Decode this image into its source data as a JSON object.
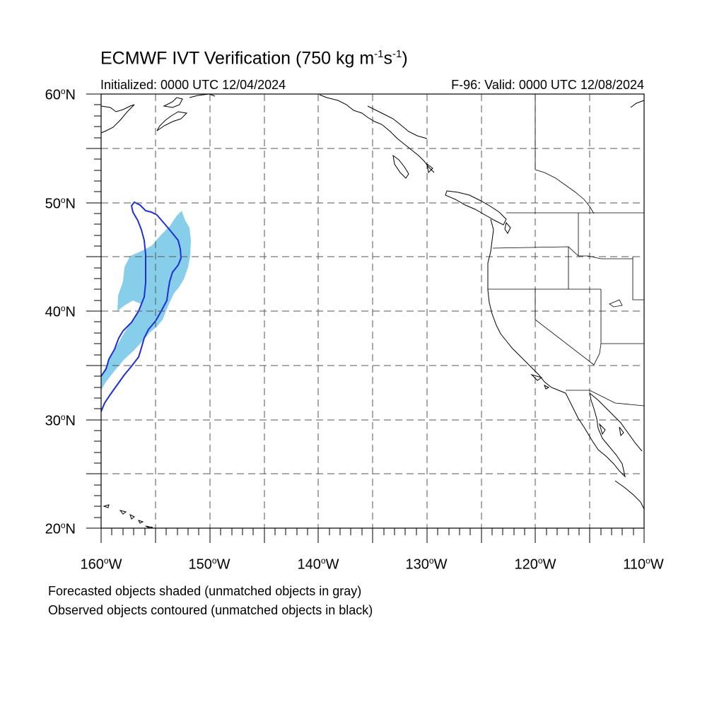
{
  "title": {
    "prefix": "ECMWF IVT Verification (750 kg m",
    "exp1": "-1",
    "mid": "s",
    "exp2": "-1",
    "suffix": ")"
  },
  "initialized": "Initialized: 0000 UTC 12/04/2024",
  "valid": "F-96: Valid: 0000 UTC 12/08/2024",
  "lat_labels": [
    {
      "num": "60",
      "deg": "o",
      "hem": "N"
    },
    {
      "num": "50",
      "deg": "o",
      "hem": "N"
    },
    {
      "num": "40",
      "deg": "o",
      "hem": "N"
    },
    {
      "num": "30",
      "deg": "o",
      "hem": "N"
    },
    {
      "num": "20",
      "deg": "o",
      "hem": "N"
    }
  ],
  "lon_labels": [
    {
      "num": "160",
      "deg": "o",
      "hem": "W"
    },
    {
      "num": "150",
      "deg": "o",
      "hem": "W"
    },
    {
      "num": "140",
      "deg": "o",
      "hem": "W"
    },
    {
      "num": "130",
      "deg": "o",
      "hem": "W"
    },
    {
      "num": "120",
      "deg": "o",
      "hem": "W"
    },
    {
      "num": "110",
      "deg": "o",
      "hem": "W"
    }
  ],
  "footnotes": {
    "line1": "Forecasted objects shaded (unmatched objects in gray)",
    "line2": "Observed objects contoured (unmatched objects in black)"
  },
  "map_extent": {
    "lon_min": -160,
    "lon_max": -110,
    "lat_min": 20,
    "lat_max": 60
  },
  "colors": {
    "forecast_fill": "#87ceeb",
    "observed_contour": "#1f2fd6",
    "coast": "#000000",
    "grid": "#555555"
  }
}
